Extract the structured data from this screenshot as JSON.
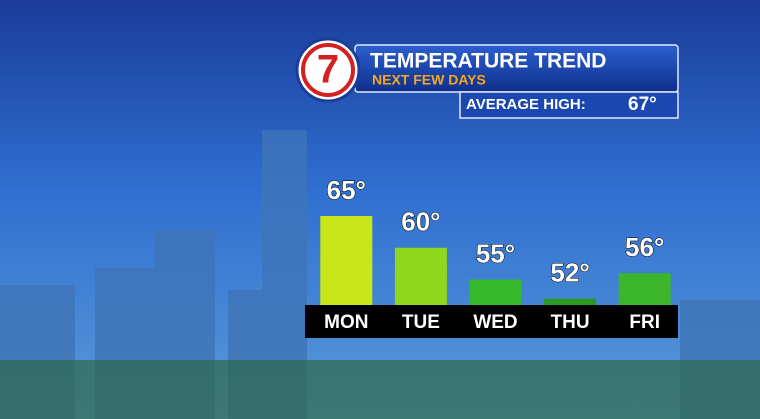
{
  "chart_data": {
    "type": "bar",
    "logo": "7",
    "title": "TEMPERATURE TREND",
    "subtitle": "NEXT FEW DAYS",
    "average_high": {
      "label": "AVERAGE HIGH:",
      "text": "67°"
    },
    "categories": [
      "MON",
      "TUE",
      "WED",
      "THU",
      "FRI"
    ],
    "values": [
      65,
      60,
      55,
      52,
      56
    ],
    "value_labels": [
      "65°",
      "60°",
      "55°",
      "52°",
      "56°"
    ],
    "colors": [
      "#c8e61a",
      "#8fd61e",
      "#35b82a",
      "#2a9a22",
      "#3ab52c"
    ],
    "ylim": [
      51,
      65
    ]
  }
}
